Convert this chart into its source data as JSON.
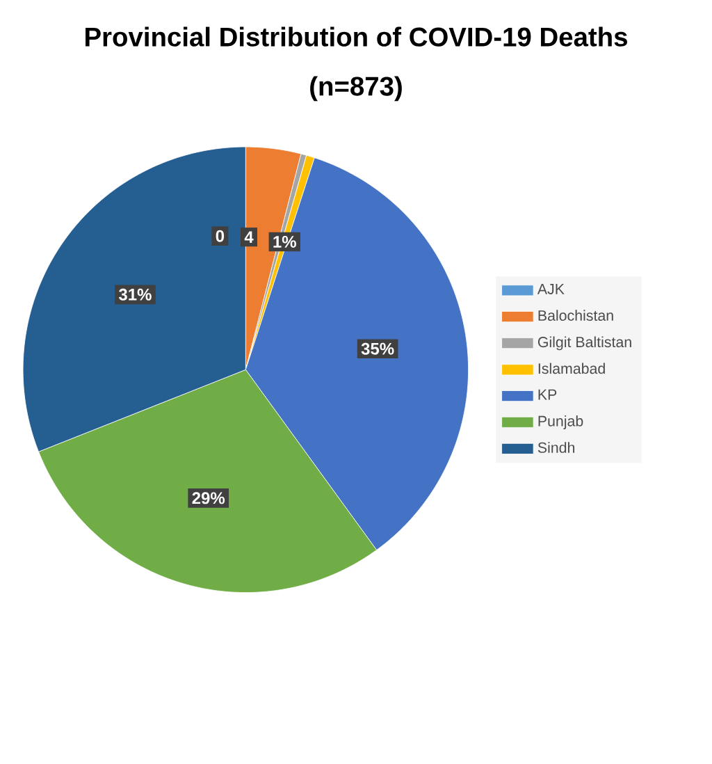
{
  "chart_data": {
    "type": "pie",
    "title": "Provincial Distribution of COVID-19 Deaths",
    "subtitle": "(n=873)",
    "categories": [
      "AJK",
      "Balochistan",
      "Gilgit Baltistan",
      "Islamabad",
      "KP",
      "Punjab",
      "Sindh"
    ],
    "values": [
      0,
      4,
      0.4,
      0.6,
      35,
      29,
      31
    ],
    "value_labels": [
      "0",
      "4",
      null,
      "1%",
      "35%",
      "29%",
      "31%"
    ],
    "colors": [
      "#5b9bd5",
      "#ed7d31",
      "#a5a5a5",
      "#ffc000",
      "#4472c4",
      "#70ad47",
      "#255e91"
    ],
    "legend": "right"
  }
}
